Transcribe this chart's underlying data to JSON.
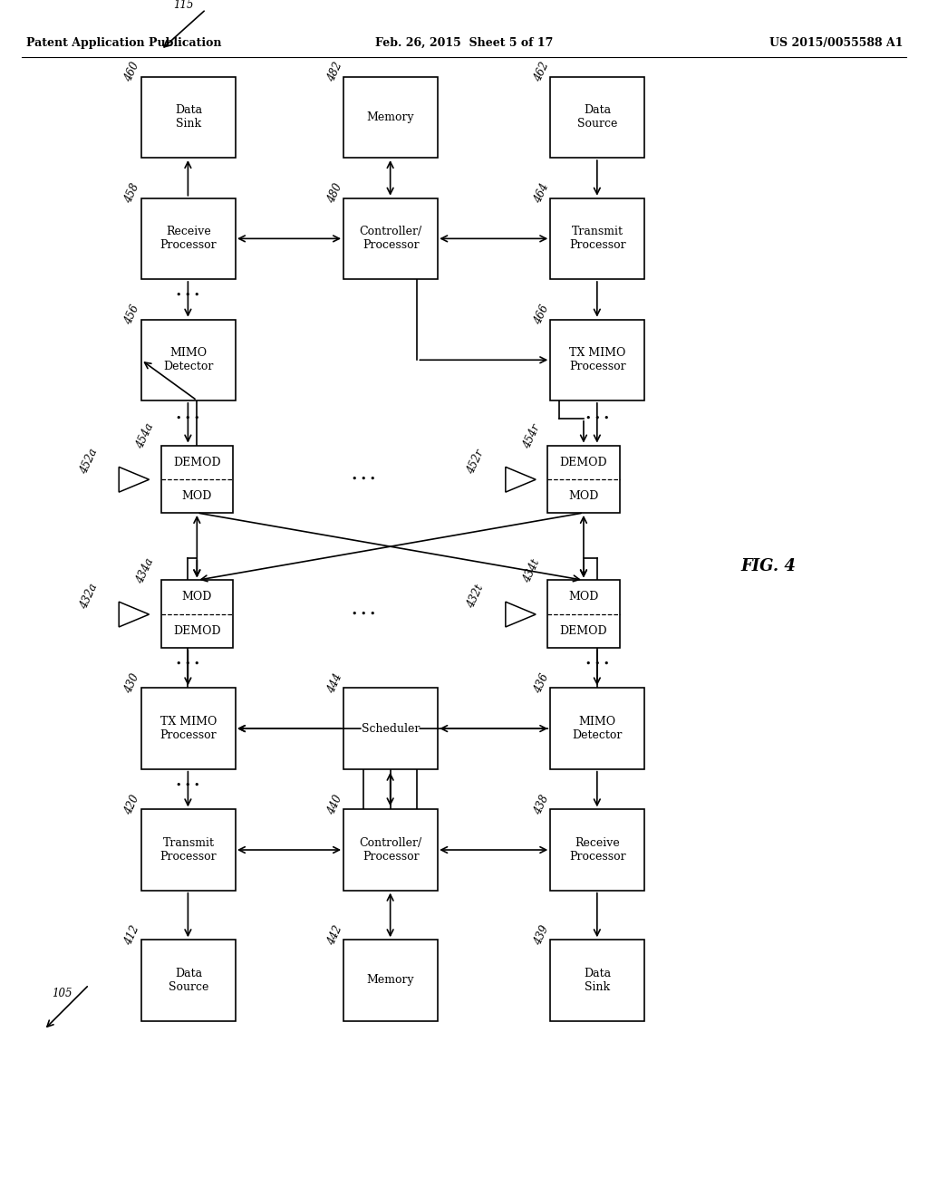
{
  "header": {
    "left": "Patent Application Publication",
    "center": "Feb. 26, 2015  Sheet 5 of 17",
    "right": "US 2015/0055588 A1"
  },
  "fig_label": "FIG. 4",
  "bg_color": "#ffffff",
  "upper": {
    "node_label": "115",
    "boxes": {
      "data_sink": {
        "label": "Data\nSink",
        "num": "460"
      },
      "memory_top": {
        "label": "Memory",
        "num": "482"
      },
      "data_source": {
        "label": "Data\nSource",
        "num": "462"
      },
      "receive_proc": {
        "label": "Receive\nProcessor",
        "num": "458"
      },
      "controller": {
        "label": "Controller/\nProcessor",
        "num": "480"
      },
      "transmit_proc": {
        "label": "Transmit\nProcessor",
        "num": "464"
      },
      "mimo_det": {
        "label": "MIMO\nDetector",
        "num": "456"
      },
      "tx_mimo": {
        "label": "TX MIMO\nProcessor",
        "num": "466"
      },
      "demod_mod_a": {
        "label": "DEMOD\nMOD",
        "num": "454a"
      },
      "demod_mod_r": {
        "label": "DEMOD\nMOD",
        "num": "454r"
      },
      "ant_a": {
        "num": "452a"
      },
      "ant_r": {
        "num": "452r"
      }
    }
  },
  "lower": {
    "node_label": "105",
    "boxes": {
      "mod_demod_a": {
        "label": "MOD\nDEMOD",
        "num": "434a"
      },
      "mod_demod_t": {
        "label": "MOD\nDEMOD",
        "num": "434t"
      },
      "ant_a": {
        "num": "432a"
      },
      "ant_t": {
        "num": "432t"
      },
      "tx_mimo": {
        "label": "TX MIMO\nProcessor",
        "num": "430"
      },
      "scheduler": {
        "label": "Scheduler",
        "num": "444"
      },
      "mimo_det": {
        "label": "MIMO\nDetector",
        "num": "436"
      },
      "transmit_proc": {
        "label": "Transmit\nProcessor",
        "num": "420"
      },
      "controller": {
        "label": "Controller/\nProcessor",
        "num": "440"
      },
      "receive_proc": {
        "label": "Receive\nProcessor",
        "num": "438"
      },
      "data_source": {
        "label": "Data\nSource",
        "num": "412"
      },
      "memory_bot": {
        "label": "Memory",
        "num": "442"
      },
      "data_sink": {
        "label": "Data\nSink",
        "num": "439"
      }
    }
  }
}
